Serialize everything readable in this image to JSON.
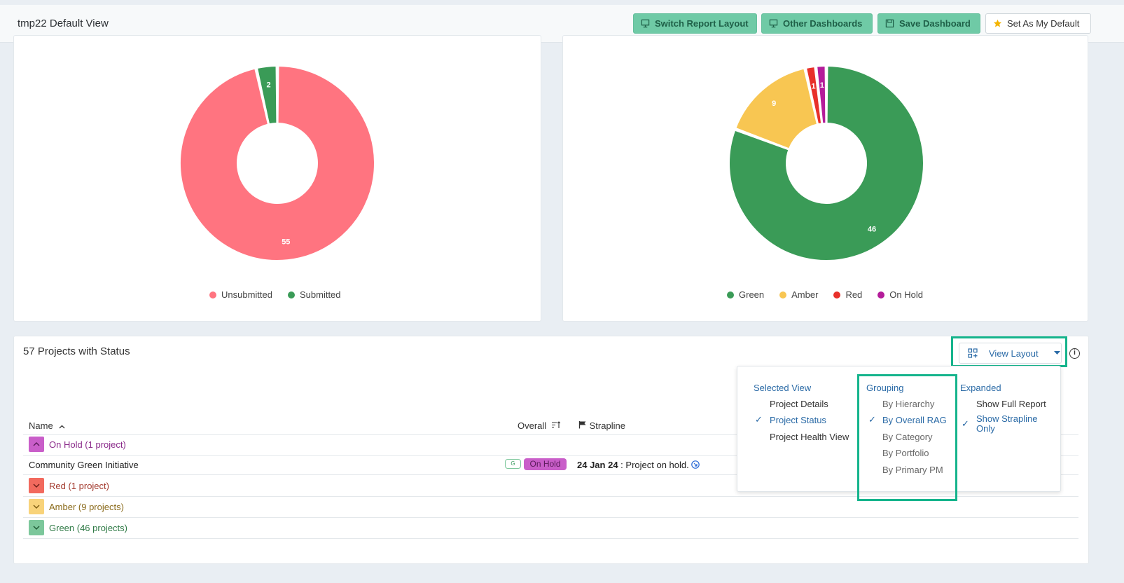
{
  "header": {
    "title": "tmp22 Default View",
    "buttons": {
      "switch_layout": "Switch Report Layout",
      "other_dashboards": "Other Dashboards",
      "save_dashboard": "Save Dashboard",
      "set_default": "Set As My Default"
    }
  },
  "submission_chart": {
    "legend": [
      "Unsubmitted",
      "Submitted"
    ],
    "colors": [
      "#ff7480",
      "#3a9b57"
    ],
    "labels": [
      "55",
      "2"
    ]
  },
  "rag_chart": {
    "legend": [
      "Green",
      "Amber",
      "Red",
      "On Hold"
    ],
    "colors": [
      "#3a9b57",
      "#f8c652",
      "#e8302a",
      "#b41c9a"
    ],
    "labels": [
      "46",
      "9",
      "1",
      "1"
    ]
  },
  "chart_data": [
    {
      "type": "pie",
      "categories": [
        "Unsubmitted",
        "Submitted"
      ],
      "values": [
        55,
        2
      ],
      "title": ""
    },
    {
      "type": "pie",
      "categories": [
        "Green",
        "Amber",
        "Red",
        "On Hold"
      ],
      "values": [
        46,
        9,
        1,
        1
      ],
      "title": ""
    }
  ],
  "table": {
    "title": "57 Projects with Status",
    "view_layout_label": "View Layout",
    "columns": {
      "name": "Name",
      "overall": "Overall",
      "strapline": "Strapline"
    },
    "groups": [
      {
        "label": "On Hold (1 project)",
        "color": "#b41c9a"
      },
      {
        "label": "Red (1 project)",
        "color": "#a33a2e"
      },
      {
        "label": "Amber (9 projects)",
        "color": "#8a6a1a"
      },
      {
        "label": "Green (46 projects)",
        "color": "#2f7a46"
      }
    ],
    "row": {
      "name": "Community Green Initiative",
      "badge_g": "G",
      "badge_status": "On Hold",
      "strap_date": "24 Jan 24",
      "strap_text": ": Project on hold."
    }
  },
  "dropdown": {
    "selected_view": {
      "heading": "Selected View",
      "items": [
        "Project Details",
        "Project Status",
        "Project Health View"
      ],
      "selected": "Project Status"
    },
    "grouping": {
      "heading": "Grouping",
      "items": [
        "By Hierarchy",
        "By Overall RAG",
        "By Category",
        "By Portfolio",
        "By Primary PM"
      ],
      "selected": "By Overall RAG"
    },
    "expanded": {
      "heading": "Expanded",
      "items": [
        "Show Full Report",
        "Show Strapline Only"
      ],
      "selected": "Show Strapline Only"
    }
  }
}
